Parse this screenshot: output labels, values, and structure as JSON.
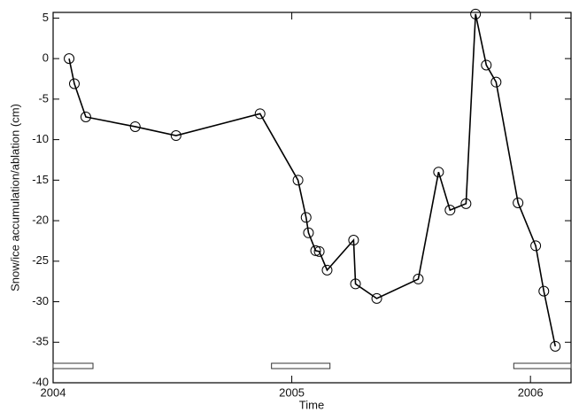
{
  "chart_data": {
    "type": "line",
    "xlabel": "Time",
    "ylabel": "Snow/ice accumulation/ablation (cm)",
    "x": [
      2004.067,
      2004.089,
      2004.137,
      2004.344,
      2004.515,
      2004.867,
      2005.026,
      2005.06,
      2005.07,
      2005.1,
      2005.115,
      2005.148,
      2005.259,
      2005.267,
      2005.356,
      2005.53,
      2005.615,
      2005.663,
      2005.73,
      2005.77,
      2005.815,
      2005.856,
      2005.948,
      2006.022,
      2006.056,
      2006.104
    ],
    "series": [
      {
        "color": "#000000",
        "values": [
          0,
          -3.1,
          -7.2,
          -8.4,
          -9.5,
          -6.8,
          -15,
          -19.6,
          -21.5,
          -23.7,
          -23.8,
          -26.1,
          -22.4,
          -27.8,
          -29.6,
          -27.2,
          -14,
          -18.7,
          -17.9,
          5.5,
          -0.8,
          -2.9,
          -17.8,
          -23.1,
          -28.7,
          -35.5
        ]
      }
    ],
    "periods": [
      {
        "start": 2004.0,
        "end": 2004.167
      },
      {
        "start": 2004.915,
        "end": 2005.16
      },
      {
        "start": 2005.93,
        "end": 2006.17
      }
    ],
    "xlim": [
      2004,
      2006.17
    ],
    "xticks": [
      2004,
      2005,
      2006
    ],
    "ylim": [
      -40,
      5.7
    ],
    "yticks": [
      5,
      0,
      -5,
      -10,
      -15,
      -20,
      -25,
      -30,
      -35,
      -40
    ]
  }
}
